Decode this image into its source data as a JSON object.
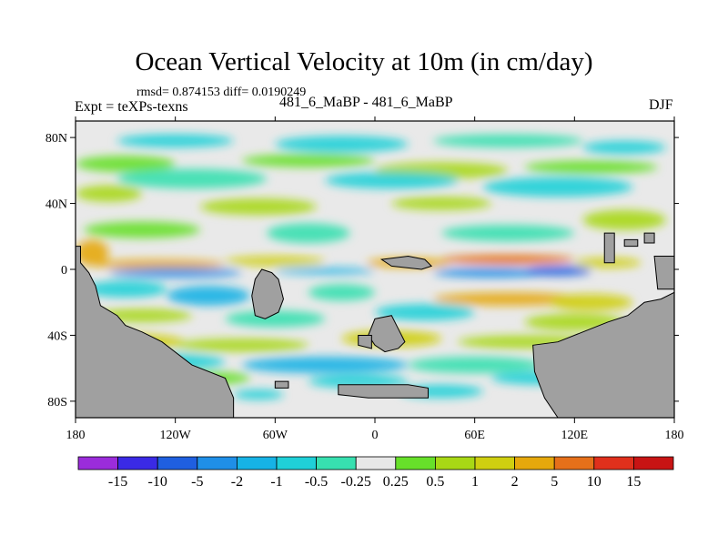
{
  "chart_data": {
    "type": "heatmap",
    "title": "Ocean Vertical Velocity at 10m (in cm/day)",
    "subtitle_left": "rmsd= 0.874153  diff= 0.0190249",
    "subtitle_expt": "Expt = teXPs-texns",
    "subtitle_center": "481_6_MaBP - 481_6_MaBP",
    "subtitle_right": "DJF",
    "x_ticks": [
      "180",
      "120W",
      "60W",
      "0",
      "60E",
      "120E",
      "180"
    ],
    "y_ticks": [
      "80N",
      "40N",
      "0",
      "40S",
      "80S"
    ],
    "lon_range": [
      -180,
      180
    ],
    "lat_range": [
      -90,
      90
    ],
    "colorbar_labels": [
      "-15",
      "-10",
      "-5",
      "-2",
      "-1",
      "-0.5",
      "-0.25",
      "0.25",
      "0.5",
      "1",
      "2",
      "5",
      "10",
      "15"
    ],
    "colorbar_colors": [
      "#9b2cdb",
      "#3a2ae6",
      "#1f5fe0",
      "#1f8fe8",
      "#16b3e6",
      "#1fd0d8",
      "#37e0b0",
      "#e8e8e8",
      "#67e02a",
      "#a8d815",
      "#cfcf10",
      "#e6a80c",
      "#e6701a",
      "#e0301c",
      "#c81414"
    ],
    "land_color": "#a0a0a0"
  }
}
